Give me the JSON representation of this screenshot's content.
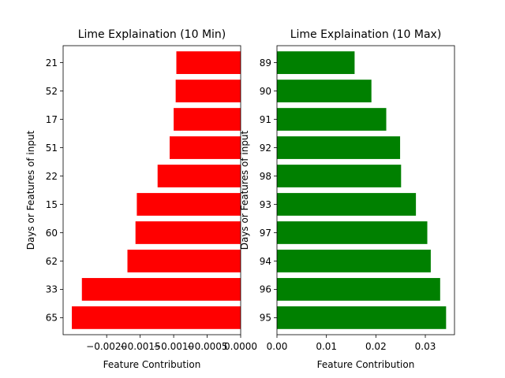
{
  "chart_data": [
    {
      "type": "bar",
      "orientation": "horizontal",
      "title": "Lime Explaination (10 Min)",
      "xlabel": "Feature Contribution",
      "ylabel": "Days or Features of input",
      "categories": [
        "65",
        "33",
        "62",
        "60",
        "15",
        "22",
        "51",
        "17",
        "52",
        "21"
      ],
      "values": [
        -0.00252,
        -0.00237,
        -0.00169,
        -0.00157,
        -0.00155,
        -0.00124,
        -0.00106,
        -0.001,
        -0.00097,
        -0.00096
      ],
      "xlim": [
        -0.00265,
        0.0
      ],
      "xticks": [
        -0.002,
        -0.0015,
        -0.001,
        -0.0005,
        0.0
      ],
      "xtick_labels": [
        "−0.0020",
        "−0.0015",
        "−0.0010",
        "−0.0005",
        "0.0000"
      ],
      "color": "#ff0000",
      "grid": false
    },
    {
      "type": "bar",
      "orientation": "horizontal",
      "title": "Lime Explaination (10 Max)",
      "xlabel": "Feature Contribution",
      "ylabel": "Days or Features of input",
      "categories": [
        "95",
        "96",
        "94",
        "97",
        "93",
        "98",
        "92",
        "91",
        "90",
        "89"
      ],
      "values": [
        0.0342,
        0.033,
        0.0311,
        0.0304,
        0.0281,
        0.0251,
        0.0249,
        0.0221,
        0.0191,
        0.0157
      ],
      "xlim": [
        0.0,
        0.0359
      ],
      "xticks": [
        0.0,
        0.01,
        0.02,
        0.03
      ],
      "xtick_labels": [
        "0.00",
        "0.01",
        "0.02",
        "0.03"
      ],
      "color": "#008000",
      "grid": false
    }
  ]
}
